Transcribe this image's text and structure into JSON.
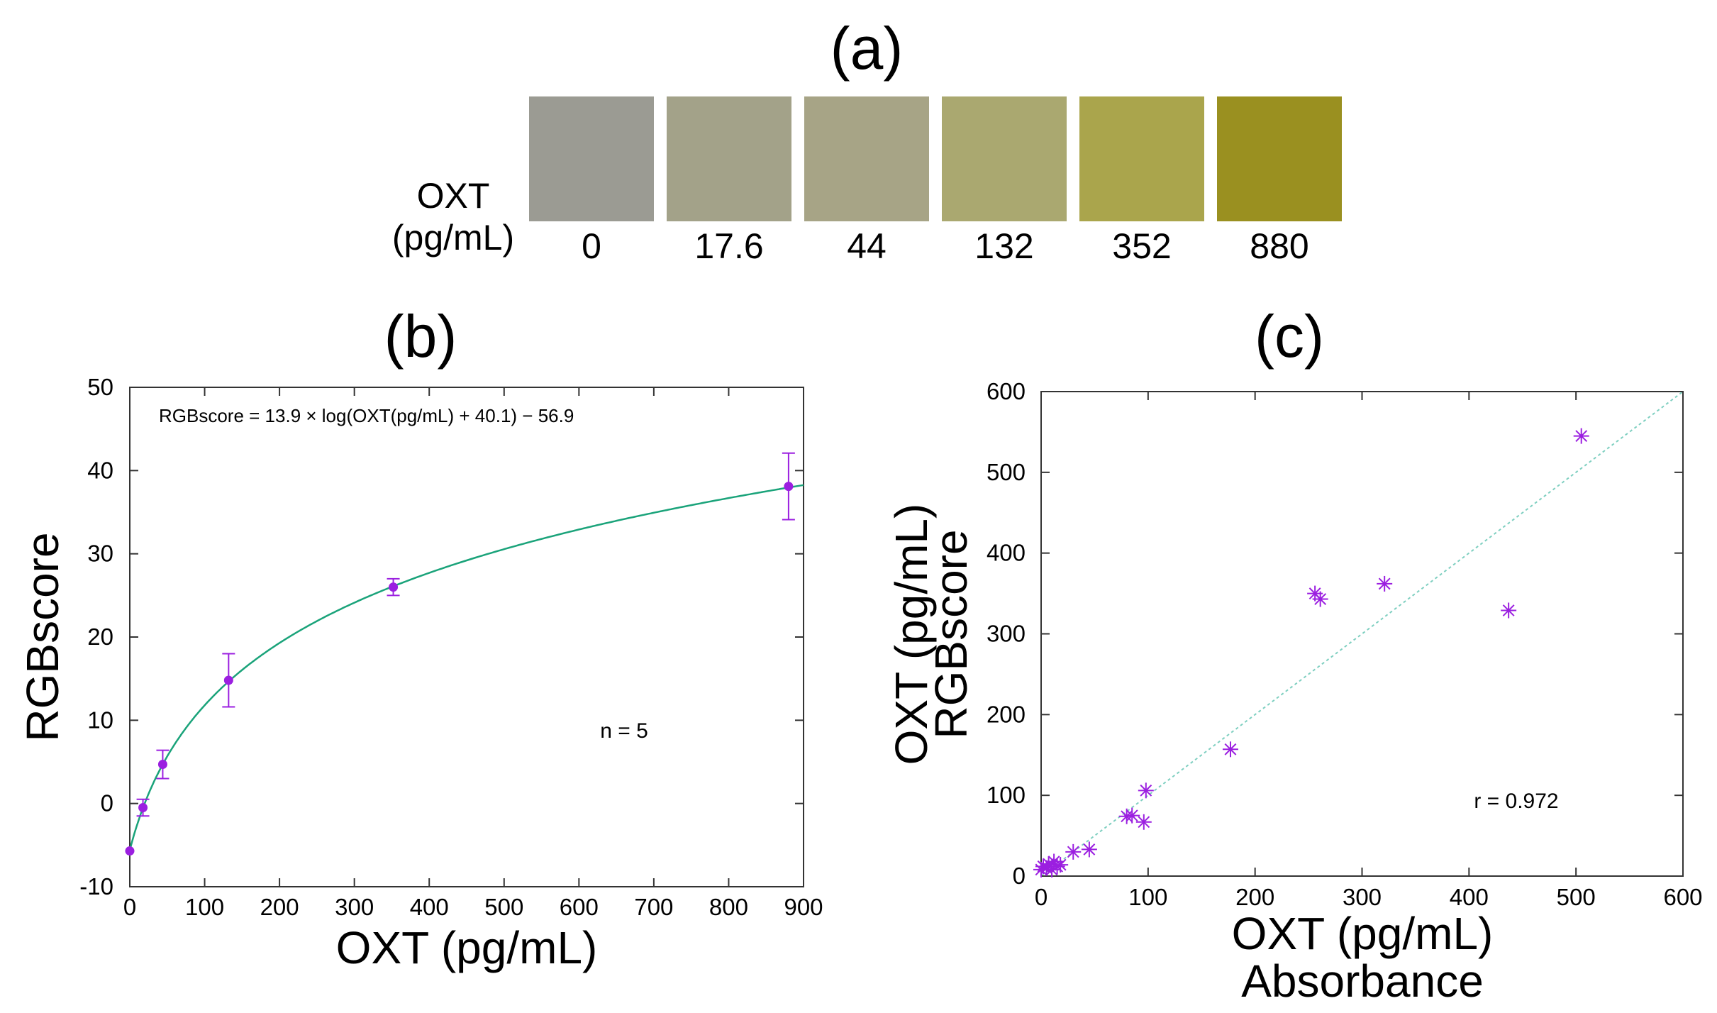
{
  "panel_a": {
    "label": "(a)",
    "caption_line1": "OXT",
    "caption_line2": "(pg/mL)",
    "swatches": [
      {
        "value": "0",
        "color": "#9b9b93"
      },
      {
        "value": "17.6",
        "color": "#a3a289"
      },
      {
        "value": "44",
        "color": "#a7a486"
      },
      {
        "value": "132",
        "color": "#aaa870"
      },
      {
        "value": "352",
        "color": "#aaa54c"
      },
      {
        "value": "880",
        "color": "#9a9020"
      }
    ]
  },
  "chart_data": [
    {
      "id": "b",
      "type": "scatter",
      "panel_label": "(b)",
      "xlabel": "OXT (pg/mL)",
      "ylabel": "RGBscore",
      "xlim": [
        0,
        900
      ],
      "ylim": [
        -10,
        50
      ],
      "xticks": [
        0,
        100,
        200,
        300,
        400,
        500,
        600,
        700,
        800,
        900
      ],
      "yticks": [
        -10,
        0,
        10,
        20,
        30,
        40,
        50
      ],
      "equation": "RGBscore = 13.9 × log(OXT(pg/mL) + 40.1) − 56.9",
      "annotation": "n = 5",
      "fit": {
        "a": 13.9,
        "b": 40.1,
        "c": -56.9,
        "color": "#1aa37a"
      },
      "points": [
        {
          "x": 0,
          "y": -5.7,
          "err": 0
        },
        {
          "x": 17.6,
          "y": -0.5,
          "err": 1.0
        },
        {
          "x": 44,
          "y": 4.7,
          "err": 1.7
        },
        {
          "x": 132,
          "y": 14.8,
          "err": 3.2
        },
        {
          "x": 352,
          "y": 26.0,
          "err": 1.0
        },
        {
          "x": 880,
          "y": 38.1,
          "err": 4.0
        }
      ],
      "point_color": "#9b1fe0",
      "grid": false
    },
    {
      "id": "c",
      "type": "scatter",
      "panel_label": "(c)",
      "xlabel_line1": "OXT (pg/mL)",
      "xlabel_line2": "Absorbance",
      "ylabel_line1": "OXT (pg/mL)",
      "ylabel_line2": "RGBscore",
      "xlim": [
        0,
        600
      ],
      "ylim": [
        0,
        600
      ],
      "xticks": [
        0,
        100,
        200,
        300,
        400,
        500,
        600
      ],
      "yticks": [
        0,
        100,
        200,
        300,
        400,
        500,
        600
      ],
      "annotation": "r = 0.972",
      "point_color": "#9b1fe0",
      "diagonal_color": "#7ecfc0",
      "grid": false,
      "points": [
        {
          "x": 0,
          "y": 8
        },
        {
          "x": 2,
          "y": 12
        },
        {
          "x": 5,
          "y": 10
        },
        {
          "x": 7,
          "y": 15
        },
        {
          "x": 10,
          "y": 8
        },
        {
          "x": 12,
          "y": 18
        },
        {
          "x": 15,
          "y": 12
        },
        {
          "x": 18,
          "y": 14
        },
        {
          "x": 30,
          "y": 30
        },
        {
          "x": 45,
          "y": 33
        },
        {
          "x": 80,
          "y": 74
        },
        {
          "x": 85,
          "y": 75
        },
        {
          "x": 96,
          "y": 67
        },
        {
          "x": 98,
          "y": 106
        },
        {
          "x": 177,
          "y": 157
        },
        {
          "x": 256,
          "y": 350
        },
        {
          "x": 261,
          "y": 343
        },
        {
          "x": 321,
          "y": 362
        },
        {
          "x": 437,
          "y": 329
        },
        {
          "x": 505,
          "y": 545
        }
      ]
    }
  ]
}
